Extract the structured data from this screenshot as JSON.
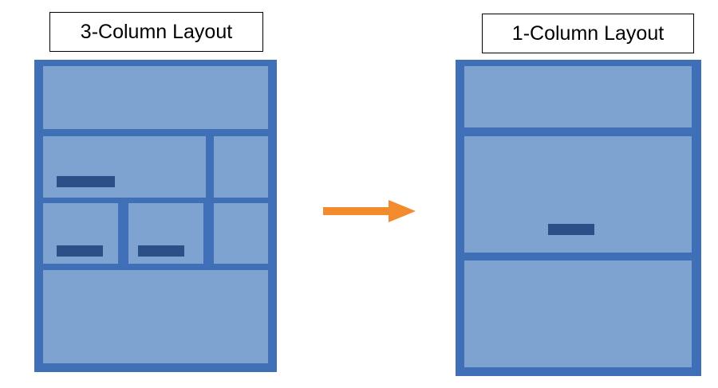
{
  "left": {
    "label": "3-Column Layout"
  },
  "right": {
    "label": "1-Column Layout"
  },
  "colors": {
    "frame": "#3F6FB6",
    "panel": "#7FA3D1",
    "bar": "#2B5088",
    "arrow": "#F28A2E"
  },
  "arrow_icon": "right-arrow-icon"
}
